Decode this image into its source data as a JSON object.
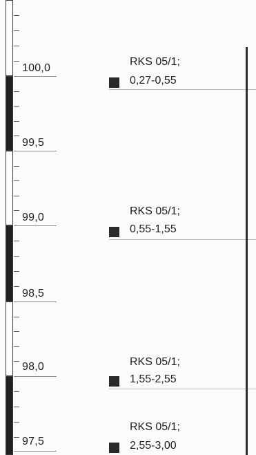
{
  "scale": {
    "labels": [
      "100,0",
      "99,5",
      "99,0",
      "98,5",
      "98,0",
      "97,5"
    ]
  },
  "samples": [
    {
      "name": "RKS 05/1;",
      "depth": "0,27-0,55"
    },
    {
      "name": "RKS 05/1;",
      "depth": "0,55-1,55"
    },
    {
      "name": "RKS 05/1;",
      "depth": "1,55-2,55"
    },
    {
      "name": "RKS 05/1;",
      "depth": "2,55-3,00"
    }
  ]
}
